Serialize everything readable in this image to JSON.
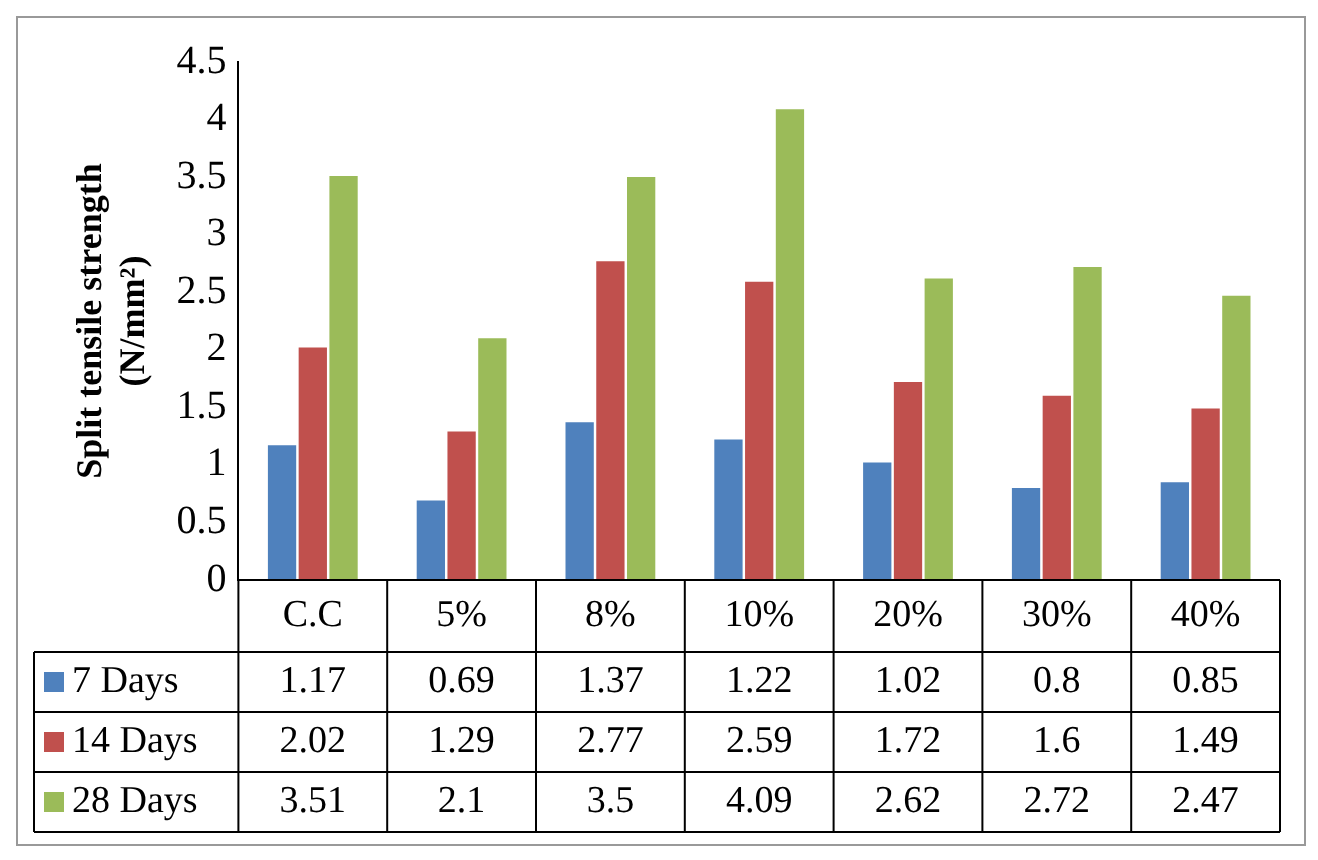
{
  "chart_data": {
    "type": "bar",
    "ylabel": "Split tensile strength (N/mm²)",
    "categories": [
      "C.C",
      "5%",
      "8%",
      "10%",
      "20%",
      "30%",
      "40%"
    ],
    "series": [
      {
        "name": "7 Days",
        "color": "#4f81bd",
        "values": [
          1.17,
          0.69,
          1.37,
          1.22,
          1.02,
          0.8,
          0.85
        ]
      },
      {
        "name": "14 Days",
        "color": "#c0504d",
        "values": [
          2.02,
          1.29,
          2.77,
          2.59,
          1.72,
          1.6,
          1.49
        ]
      },
      {
        "name": "28 Days",
        "color": "#9bbb59",
        "values": [
          3.51,
          2.1,
          3.5,
          4.09,
          2.62,
          2.72,
          2.47
        ]
      }
    ],
    "ylim": [
      0,
      4.5
    ],
    "yticks": [
      0,
      0.5,
      1,
      1.5,
      2,
      2.5,
      3,
      3.5,
      4,
      4.5
    ],
    "grid": false,
    "legend": "bottom",
    "data_labels": true
  }
}
